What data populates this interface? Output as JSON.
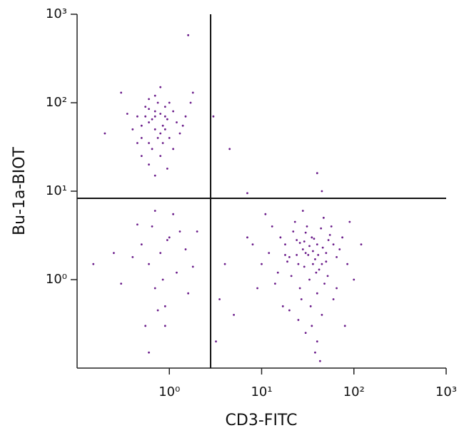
{
  "chart_data": {
    "type": "scatter",
    "x_label": "CD3-FITC",
    "y_label": "Bu-1a-BIOT",
    "log_x": true,
    "log_y": true,
    "color": "#6a1b8a",
    "xlim": [
      0.1,
      1000
    ],
    "ylim": [
      0.1,
      1000
    ],
    "xticks": [
      {
        "value": 1,
        "label": "10⁰"
      },
      {
        "value": 10,
        "label": "10¹"
      },
      {
        "value": 100,
        "label": "10²"
      },
      {
        "value": 1000,
        "label": "10³"
      }
    ],
    "yticks": [
      {
        "value": 1,
        "label": "10⁰"
      },
      {
        "value": 10,
        "label": "10¹"
      },
      {
        "value": 100,
        "label": "10²"
      },
      {
        "value": 1000,
        "label": "10³"
      }
    ],
    "gates": {
      "x": 2.8,
      "y": 8.3
    },
    "x": [
      0.6,
      0.8,
      0.7,
      0.5,
      0.9,
      1.0,
      0.65,
      0.75,
      0.55,
      0.85,
      1.2,
      0.45,
      0.6,
      0.7,
      0.9,
      1.1,
      0.8,
      0.5,
      0.95,
      0.35,
      0.4,
      1.3,
      0.7,
      0.6,
      0.8,
      0.3,
      1.5,
      0.65,
      0.75,
      0.85,
      1.0,
      0.55,
      0.9,
      0.7,
      0.6,
      1.1,
      0.45,
      0.8,
      0.2,
      1.7,
      0.95,
      0.5,
      0.7,
      1.4,
      0.6,
      1.6,
      1.8,
      30,
      25,
      40,
      20,
      35,
      50,
      15,
      45,
      28,
      33,
      60,
      22,
      38,
      18,
      55,
      42,
      26,
      31,
      48,
      12,
      65,
      24,
      36,
      29,
      44,
      52,
      19,
      27,
      34,
      40,
      23,
      57,
      70,
      16,
      10,
      8,
      14,
      21,
      37,
      46,
      32,
      26,
      39,
      30,
      50,
      75,
      85,
      9,
      13,
      17,
      25,
      35,
      45,
      40,
      30,
      60,
      20,
      90,
      100,
      7,
      11,
      28,
      47,
      33,
      41,
      24,
      36,
      29,
      53,
      18,
      43,
      38,
      120,
      65,
      80,
      5,
      4,
      3.5,
      3.2,
      3,
      4.5,
      40,
      45,
      7,
      0.8,
      0.6,
      1.0,
      0.7,
      0.5,
      1.2,
      0.9,
      0.4,
      1.5,
      0.65,
      0.75,
      1.1,
      0.3,
      0.55,
      1.3,
      0.85,
      0.45,
      0.95,
      1.8,
      0.25,
      0.15,
      2.0,
      0.7,
      0.6,
      0.9,
      1.6
    ],
    "values": [
      60,
      45,
      80,
      55,
      70,
      40,
      30,
      100,
      90,
      55,
      60,
      70,
      35,
      50,
      90,
      80,
      25,
      40,
      65,
      75,
      50,
      45,
      120,
      20,
      150,
      130,
      70,
      65,
      40,
      35,
      100,
      70,
      50,
      70,
      85,
      30,
      35,
      75,
      45,
      100,
      18,
      25,
      15,
      55,
      110,
      580,
      130,
      2,
      1.5,
      2.5,
      1.8,
      3,
      2,
      1.2,
      1.5,
      2.2,
      1,
      2.5,
      3.5,
      1.7,
      2.5,
      3.2,
      1.3,
      0.8,
      4,
      0.9,
      2,
      1.8,
      2.8,
      2.1,
      1.4,
      3.8,
      1.1,
      1.6,
      0.6,
      0.5,
      0.7,
      4.5,
      4,
      2.2,
      3,
      1.5,
      2.5,
      0.9,
      1.1,
      2.9,
      2.3,
      1.9,
      2.6,
      1.2,
      3.4,
      1.6,
      3,
      1.5,
      0.8,
      4,
      0.5,
      0.35,
      0.3,
      0.4,
      0.2,
      0.25,
      0.6,
      0.45,
      4.5,
      1,
      3,
      5.5,
      6,
      5,
      2.4,
      1.9,
      1.9,
      1.5,
      2.7,
      2.8,
      1.9,
      0.12,
      0.15,
      2.5,
      0.8,
      0.3,
      0.4,
      1.5,
      0.6,
      0.2,
      70,
      30,
      16,
      10,
      9.5,
      2,
      1.5,
      3,
      0.8,
      2.5,
      1.2,
      0.5,
      1.8,
      2.2,
      4,
      0.45,
      5.5,
      0.9,
      0.3,
      3.5,
      1,
      4.2,
      2.8,
      1.4,
      2,
      1.5,
      3.5,
      6,
      0.15,
      0.3,
      0.7
    ]
  }
}
